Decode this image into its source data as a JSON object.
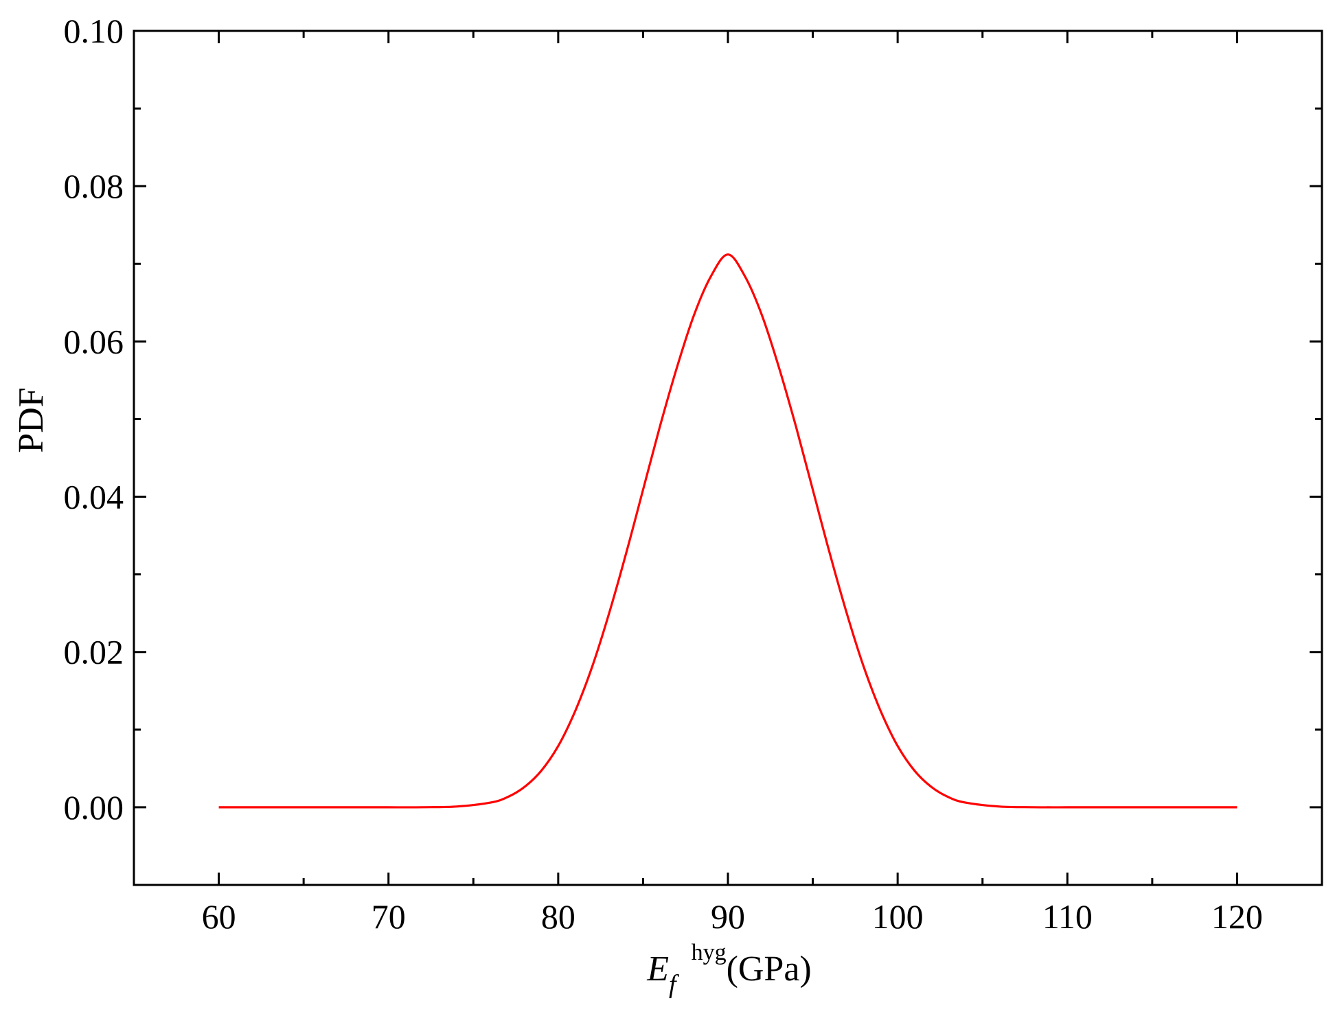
{
  "chart_data": {
    "type": "line",
    "title": "",
    "xlabel": {
      "base": "E",
      "subscript": "f",
      "superscript": "hyg",
      "unit": "(GPa)"
    },
    "ylabel": "PDF",
    "xlim": [
      55,
      125
    ],
    "ylim": [
      -0.01,
      0.1
    ],
    "x_ticks": [
      60,
      70,
      80,
      90,
      100,
      110,
      120
    ],
    "x_tick_labels": [
      "60",
      "70",
      "80",
      "90",
      "100",
      "110",
      "120"
    ],
    "x_minor_ticks": [
      55,
      65,
      75,
      85,
      95,
      105,
      115,
      125
    ],
    "y_ticks": [
      0,
      0.02,
      0.04,
      0.06,
      0.08,
      0.1
    ],
    "y_tick_labels": [
      "0.00",
      "0.02",
      "0.04",
      "0.06",
      "0.08",
      "0.10"
    ],
    "y_minor_ticks": [
      -0.01,
      0.01,
      0.03,
      0.05,
      0.07,
      0.09
    ],
    "grid": false,
    "legend": "none",
    "series": [
      {
        "color": "#ff0000",
        "x": [
          60,
          62,
          64,
          66,
          68,
          70,
          72,
          74,
          76,
          77,
          78,
          79,
          80,
          81,
          82,
          83,
          84,
          85,
          86,
          87,
          88,
          89,
          90,
          91,
          92,
          93,
          94,
          95,
          96,
          97,
          98,
          99,
          100,
          101,
          102,
          103,
          104,
          106,
          108,
          110,
          112,
          114,
          116,
          118,
          120
        ],
        "y": [
          0,
          0,
          0,
          0,
          0,
          0,
          1e-05,
          0.0001,
          0.0006,
          0.0013,
          0.0026,
          0.0047,
          0.0079,
          0.0124,
          0.0181,
          0.025,
          0.0327,
          0.0409,
          0.0491,
          0.0567,
          0.0634,
          0.0684,
          0.0712,
          0.0684,
          0.0634,
          0.0567,
          0.0491,
          0.0409,
          0.0327,
          0.025,
          0.0181,
          0.0124,
          0.0079,
          0.0047,
          0.0026,
          0.0013,
          0.0006,
          0.0001,
          1e-05,
          0,
          0,
          0,
          0,
          0,
          0
        ]
      }
    ]
  }
}
